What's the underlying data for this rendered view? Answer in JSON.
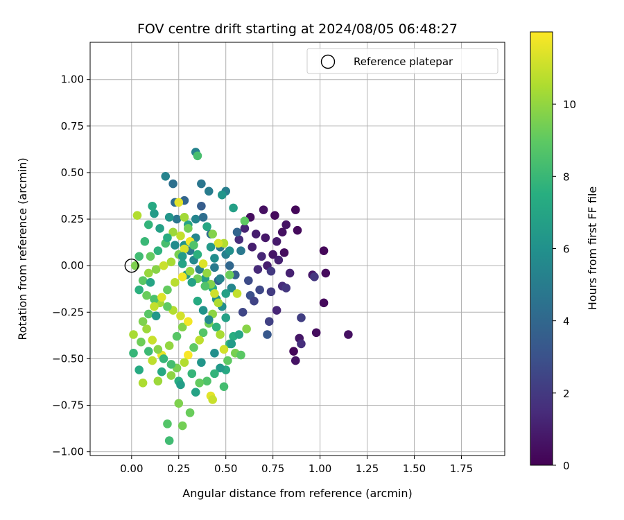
{
  "chart_data": {
    "type": "scatter",
    "title": "FOV centre drift starting at 2024/08/05 06:48:27",
    "xlabel": "Angular distance from reference (arcmin)",
    "ylabel": "Rotation from reference (arcmin)",
    "xlim": [
      -0.22,
      1.98
    ],
    "ylim": [
      -1.02,
      1.2
    ],
    "xticks": [
      "0.00",
      "0.25",
      "0.50",
      "0.75",
      "1.00",
      "1.25",
      "1.50",
      "1.75"
    ],
    "yticks": [
      "1.00",
      "0.75",
      "0.50",
      "0.25",
      "0.00",
      "−0.25",
      "−0.50",
      "−0.75",
      "−1.00"
    ],
    "grid": true,
    "legend": {
      "position": "top-right",
      "entries": [
        "Reference platepar"
      ]
    },
    "reference_point": {
      "x": 0.0,
      "y": 0.0,
      "marker": "open-circle"
    },
    "colorbar": {
      "label": "Hours from first FF file",
      "range": [
        0,
        12
      ],
      "ticks": [
        "0",
        "2",
        "4",
        "6",
        "8",
        "10"
      ],
      "colormap": "viridis"
    },
    "points": [
      [
        0.76,
        0.27,
        0.3
      ],
      [
        0.87,
        0.3,
        0.2
      ],
      [
        0.7,
        0.3,
        0.5
      ],
      [
        0.63,
        0.26,
        0.4
      ],
      [
        0.82,
        0.22,
        0.6
      ],
      [
        0.88,
        0.19,
        0.3
      ],
      [
        0.66,
        0.17,
        1.0
      ],
      [
        0.71,
        0.15,
        0.8
      ],
      [
        0.77,
        0.13,
        0.9
      ],
      [
        0.8,
        0.18,
        0.5
      ],
      [
        0.6,
        0.2,
        1.2
      ],
      [
        0.57,
        0.14,
        1.5
      ],
      [
        0.64,
        0.1,
        1.0
      ],
      [
        0.69,
        0.05,
        1.3
      ],
      [
        0.72,
        0.0,
        1.0
      ],
      [
        0.75,
        0.06,
        0.7
      ],
      [
        0.78,
        0.03,
        1.1
      ],
      [
        0.81,
        0.07,
        0.4
      ],
      [
        0.67,
        -0.02,
        1.4
      ],
      [
        0.74,
        -0.03,
        2.0
      ],
      [
        0.84,
        -0.04,
        1.1
      ],
      [
        0.96,
        -0.05,
        0.8
      ],
      [
        0.97,
        -0.06,
        1.9
      ],
      [
        1.02,
        0.08,
        0.2
      ],
      [
        1.03,
        -0.04,
        0.3
      ],
      [
        1.02,
        -0.2,
        0.3
      ],
      [
        0.8,
        -0.11,
        1.5
      ],
      [
        0.82,
        -0.12,
        1.9
      ],
      [
        0.74,
        -0.14,
        2.1
      ],
      [
        0.68,
        -0.13,
        2.6
      ],
      [
        0.62,
        -0.08,
        2.7
      ],
      [
        0.63,
        -0.16,
        2.9
      ],
      [
        0.65,
        -0.19,
        2.4
      ],
      [
        0.77,
        -0.24,
        1.3
      ],
      [
        0.9,
        -0.28,
        2.2
      ],
      [
        0.73,
        -0.3,
        2.3
      ],
      [
        0.72,
        -0.37,
        3.3
      ],
      [
        0.89,
        -0.39,
        0.7
      ],
      [
        0.9,
        -0.42,
        1.6
      ],
      [
        0.86,
        -0.46,
        0.2
      ],
      [
        0.87,
        -0.51,
        0.6
      ],
      [
        0.98,
        -0.36,
        0.4
      ],
      [
        1.15,
        -0.37,
        0.5
      ],
      [
        0.59,
        -0.25,
        2.5
      ],
      [
        0.56,
        0.18,
        3.9
      ],
      [
        0.58,
        0.08,
        4.8
      ],
      [
        0.52,
        0.0,
        4.0
      ],
      [
        0.5,
        0.06,
        5.2
      ],
      [
        0.55,
        -0.05,
        3.6
      ],
      [
        0.47,
        0.1,
        4.6
      ],
      [
        0.44,
        0.04,
        5.8
      ],
      [
        0.46,
        -0.08,
        3.9
      ],
      [
        0.53,
        -0.12,
        5.5
      ],
      [
        0.42,
        0.17,
        4.2
      ],
      [
        0.4,
        0.21,
        7.1
      ],
      [
        0.34,
        0.25,
        5.4
      ],
      [
        0.3,
        0.22,
        6.9
      ],
      [
        0.24,
        0.25,
        4.7
      ],
      [
        0.2,
        0.26,
        6.2
      ],
      [
        0.12,
        0.28,
        6.5
      ],
      [
        0.11,
        0.32,
        7.2
      ],
      [
        0.09,
        0.22,
        7.8
      ],
      [
        0.18,
        0.48,
        5.3
      ],
      [
        0.22,
        0.44,
        4.4
      ],
      [
        0.28,
        0.35,
        3.9
      ],
      [
        0.23,
        0.34,
        4.2
      ],
      [
        0.37,
        0.44,
        4.7
      ],
      [
        0.41,
        0.4,
        5.0
      ],
      [
        0.5,
        0.4,
        5.1
      ],
      [
        0.48,
        0.38,
        6.2
      ],
      [
        0.34,
        0.61,
        5.3
      ],
      [
        0.35,
        0.59,
        8.4
      ],
      [
        0.37,
        0.32,
        3.5
      ],
      [
        0.38,
        0.26,
        4.3
      ],
      [
        0.34,
        0.15,
        5.5
      ],
      [
        0.28,
        0.11,
        6.1
      ],
      [
        0.31,
        0.08,
        4.8
      ],
      [
        0.33,
        0.03,
        5.6
      ],
      [
        0.27,
        0.01,
        7.0
      ],
      [
        0.29,
        -0.05,
        6.4
      ],
      [
        0.36,
        -0.02,
        5.1
      ],
      [
        0.39,
        -0.07,
        6.6
      ],
      [
        0.43,
        -0.12,
        7.4
      ],
      [
        0.45,
        -0.18,
        6.0
      ],
      [
        0.48,
        -0.22,
        5.8
      ],
      [
        0.5,
        -0.28,
        6.8
      ],
      [
        0.54,
        -0.38,
        7.5
      ],
      [
        0.52,
        -0.42,
        8.0
      ],
      [
        0.55,
        -0.47,
        9.5
      ],
      [
        0.51,
        -0.51,
        9.0
      ],
      [
        0.5,
        -0.56,
        7.2
      ],
      [
        0.49,
        -0.65,
        8.3
      ],
      [
        0.47,
        -0.55,
        6.4
      ],
      [
        0.44,
        -0.58,
        7.8
      ],
      [
        0.4,
        -0.62,
        8.6
      ],
      [
        0.36,
        -0.63,
        9.1
      ],
      [
        0.34,
        -0.68,
        6.9
      ],
      [
        0.42,
        -0.7,
        11.5
      ],
      [
        0.43,
        -0.72,
        11.0
      ],
      [
        0.25,
        -0.74,
        9.6
      ],
      [
        0.31,
        -0.79,
        9.2
      ],
      [
        0.27,
        -0.86,
        9.4
      ],
      [
        0.19,
        -0.85,
        8.7
      ],
      [
        0.2,
        -0.94,
        8.2
      ],
      [
        0.25,
        -0.62,
        7.5
      ],
      [
        0.21,
        -0.59,
        9.9
      ],
      [
        0.14,
        -0.62,
        10.2
      ],
      [
        0.06,
        -0.63,
        10.5
      ],
      [
        0.04,
        -0.56,
        7.3
      ],
      [
        0.01,
        -0.47,
        7.9
      ],
      [
        0.01,
        -0.37,
        10.4
      ],
      [
        0.05,
        -0.41,
        9.3
      ],
      [
        0.09,
        -0.46,
        8.1
      ],
      [
        0.11,
        -0.51,
        10.8
      ],
      [
        0.16,
        -0.48,
        11.6
      ],
      [
        0.2,
        -0.43,
        10.0
      ],
      [
        0.24,
        -0.38,
        8.8
      ],
      [
        0.27,
        -0.33,
        9.7
      ],
      [
        0.3,
        -0.3,
        11.8
      ],
      [
        0.26,
        -0.27,
        11.2
      ],
      [
        0.22,
        -0.24,
        10.6
      ],
      [
        0.19,
        -0.22,
        9.0
      ],
      [
        0.15,
        -0.2,
        10.3
      ],
      [
        0.12,
        -0.18,
        8.5
      ],
      [
        0.08,
        -0.16,
        9.2
      ],
      [
        0.04,
        -0.13,
        7.6
      ],
      [
        0.06,
        -0.08,
        8.9
      ],
      [
        0.09,
        -0.04,
        10.1
      ],
      [
        0.13,
        -0.02,
        9.8
      ],
      [
        0.17,
        0.0,
        11.0
      ],
      [
        0.21,
        0.02,
        10.4
      ],
      [
        0.25,
        0.06,
        9.5
      ],
      [
        0.28,
        0.09,
        11.3
      ],
      [
        0.31,
        0.13,
        11.7
      ],
      [
        0.26,
        0.16,
        10.9
      ],
      [
        0.22,
        0.18,
        10.2
      ],
      [
        0.18,
        0.12,
        8.4
      ],
      [
        0.14,
        0.08,
        7.7
      ],
      [
        0.1,
        0.05,
        9.1
      ],
      [
        0.07,
        0.13,
        8.0
      ],
      [
        0.03,
        0.27,
        10.6
      ],
      [
        0.02,
        0.0,
        9.6
      ],
      [
        0.04,
        0.05,
        8.2
      ],
      [
        0.25,
        0.34,
        11.5
      ],
      [
        0.28,
        0.26,
        10.3
      ],
      [
        0.3,
        0.2,
        9.4
      ],
      [
        0.33,
        0.11,
        8.6
      ],
      [
        0.35,
        0.06,
        7.6
      ],
      [
        0.38,
        0.01,
        11.4
      ],
      [
        0.4,
        -0.04,
        10.0
      ],
      [
        0.42,
        -0.1,
        9.7
      ],
      [
        0.44,
        -0.15,
        11.1
      ],
      [
        0.46,
        -0.2,
        10.5
      ],
      [
        0.43,
        -0.26,
        9.9
      ],
      [
        0.41,
        -0.31,
        9.3
      ],
      [
        0.38,
        -0.36,
        8.7
      ],
      [
        0.36,
        -0.4,
        10.8
      ],
      [
        0.33,
        -0.44,
        9.0
      ],
      [
        0.3,
        -0.48,
        11.9
      ],
      [
        0.28,
        -0.52,
        10.6
      ],
      [
        0.24,
        -0.55,
        9.5
      ],
      [
        0.21,
        -0.53,
        8.3
      ],
      [
        0.17,
        -0.5,
        7.9
      ],
      [
        0.14,
        -0.45,
        9.8
      ],
      [
        0.11,
        -0.4,
        11.0
      ],
      [
        0.08,
        -0.34,
        10.2
      ],
      [
        0.06,
        -0.3,
        9.6
      ],
      [
        0.09,
        -0.26,
        8.8
      ],
      [
        0.12,
        -0.22,
        10.9
      ],
      [
        0.16,
        -0.17,
        11.4
      ],
      [
        0.19,
        -0.13,
        9.1
      ],
      [
        0.23,
        -0.09,
        10.7
      ],
      [
        0.27,
        -0.06,
        11.8
      ],
      [
        0.31,
        -0.03,
        10.1
      ],
      [
        0.35,
        -0.07,
        9.3
      ],
      [
        0.39,
        -0.11,
        8.6
      ],
      [
        0.45,
        -0.33,
        7.7
      ],
      [
        0.47,
        -0.37,
        10.4
      ],
      [
        0.49,
        -0.45,
        11.2
      ],
      [
        0.57,
        -0.37,
        7.0
      ],
      [
        0.58,
        -0.48,
        8.9
      ],
      [
        0.61,
        -0.34,
        9.8
      ],
      [
        0.56,
        -0.15,
        10.9
      ],
      [
        0.52,
        -0.05,
        9.2
      ],
      [
        0.49,
        0.12,
        10.6
      ],
      [
        0.46,
        0.12,
        11.3
      ],
      [
        0.43,
        0.17,
        9.7
      ],
      [
        0.6,
        0.24,
        9.0
      ],
      [
        0.54,
        0.31,
        6.7
      ],
      [
        0.53,
        -0.42,
        6.5
      ],
      [
        0.44,
        -0.47,
        5.9
      ],
      [
        0.37,
        -0.52,
        6.2
      ],
      [
        0.32,
        -0.58,
        7.9
      ],
      [
        0.26,
        -0.64,
        6.6
      ],
      [
        0.16,
        -0.57,
        7.2
      ],
      [
        0.13,
        -0.27,
        6.3
      ],
      [
        0.1,
        -0.09,
        7.0
      ],
      [
        0.15,
        0.2,
        6.8
      ],
      [
        0.19,
        0.15,
        7.4
      ],
      [
        0.23,
        0.11,
        5.7
      ],
      [
        0.27,
        0.05,
        6.5
      ],
      [
        0.32,
        -0.09,
        6.9
      ],
      [
        0.35,
        -0.19,
        7.3
      ],
      [
        0.38,
        -0.24,
        6.1
      ],
      [
        0.41,
        -0.29,
        5.6
      ],
      [
        0.47,
        -0.07,
        5.3
      ],
      [
        0.44,
        -0.01,
        4.9
      ],
      [
        0.5,
        -0.15,
        6.7
      ],
      [
        0.52,
        0.08,
        5.9
      ],
      [
        0.42,
        0.1,
        6.4
      ]
    ]
  }
}
